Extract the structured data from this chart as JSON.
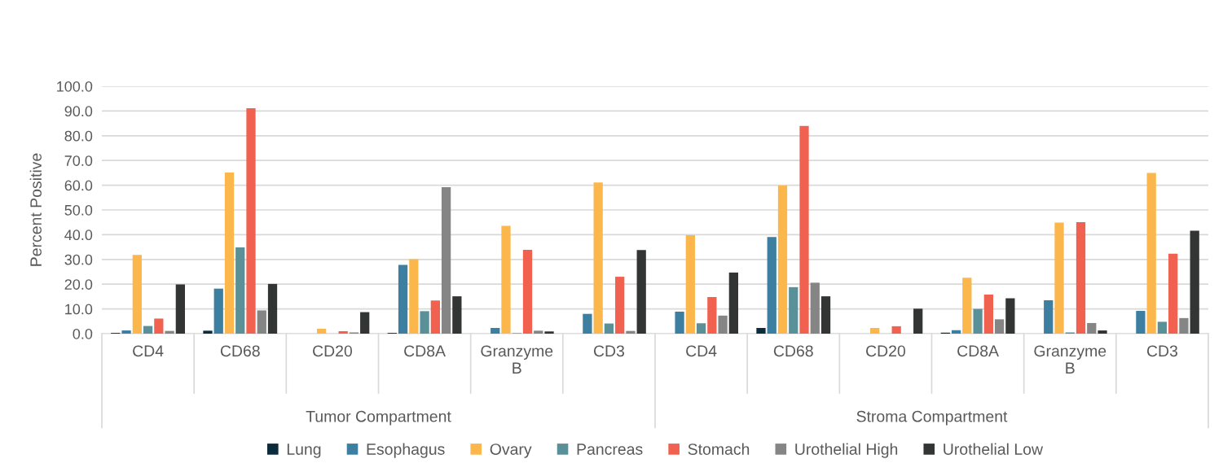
{
  "chart_data": {
    "type": "bar",
    "ylabel": "Percent Positive",
    "categories": [
      "CD4",
      "CD68",
      "CD20",
      "CD8A",
      "Granzyme B",
      "CD3",
      "CD4",
      "CD68",
      "CD20",
      "CD8A",
      "Granzyme B",
      "CD3"
    ],
    "annotations": [
      "Tumor Compartment",
      "Stroma Compartment"
    ],
    "series": [
      {
        "name": "Lung",
        "color": "#0b2c3d",
        "values": [
          0.3,
          1.2,
          0,
          0.3,
          0,
          0,
          0,
          2.3,
          0,
          0.4,
          0,
          0
        ]
      },
      {
        "name": "Esophagus",
        "color": "#3c7fa0",
        "values": [
          1.3,
          18.2,
          0,
          27.8,
          2.3,
          8.0,
          8.9,
          39.1,
          0,
          1.4,
          13.5,
          9.2
        ]
      },
      {
        "name": "Ovary",
        "color": "#fbb74c",
        "values": [
          31.8,
          65.1,
          2.0,
          30.1,
          43.6,
          61.1,
          39.8,
          59.9,
          2.3,
          22.6,
          44.9,
          65.0
        ]
      },
      {
        "name": "Pancreas",
        "color": "#5a9199",
        "values": [
          3.1,
          34.9,
          0,
          9.1,
          0.2,
          4.1,
          4.2,
          18.8,
          0,
          10.0,
          0.5,
          4.8
        ]
      },
      {
        "name": "Stomach",
        "color": "#f06150",
        "values": [
          6.1,
          91.1,
          1.0,
          13.4,
          33.9,
          23.0,
          14.8,
          84.0,
          3.0,
          15.8,
          45.1,
          32.3
        ]
      },
      {
        "name": "Urothelial High",
        "color": "#858585",
        "values": [
          1.1,
          9.4,
          0.5,
          59.2,
          1.2,
          1.1,
          7.3,
          20.6,
          0,
          5.8,
          4.3,
          6.3
        ]
      },
      {
        "name": "Urothelial Low",
        "color": "#333535",
        "values": [
          19.9,
          20.1,
          8.7,
          15.1,
          0.9,
          33.8,
          24.7,
          15.1,
          10.1,
          14.3,
          1.3,
          41.6
        ]
      }
    ],
    "ylim": [
      0,
      100
    ],
    "yticks": [
      {
        "value": 0,
        "label": "0.0"
      },
      {
        "value": 10,
        "label": "10.0"
      },
      {
        "value": 20,
        "label": "20.0"
      },
      {
        "value": 30,
        "label": "30.0"
      },
      {
        "value": 40,
        "label": "40.0"
      },
      {
        "value": 50,
        "label": "50.0"
      },
      {
        "value": 60,
        "label": "60.0"
      },
      {
        "value": 70,
        "label": "70.0"
      },
      {
        "value": 80,
        "label": "80.0"
      },
      {
        "value": 90,
        "label": "90.0"
      },
      {
        "value": 100,
        "label": "100.0"
      }
    ],
    "grid": "y",
    "legend": "bottom"
  }
}
